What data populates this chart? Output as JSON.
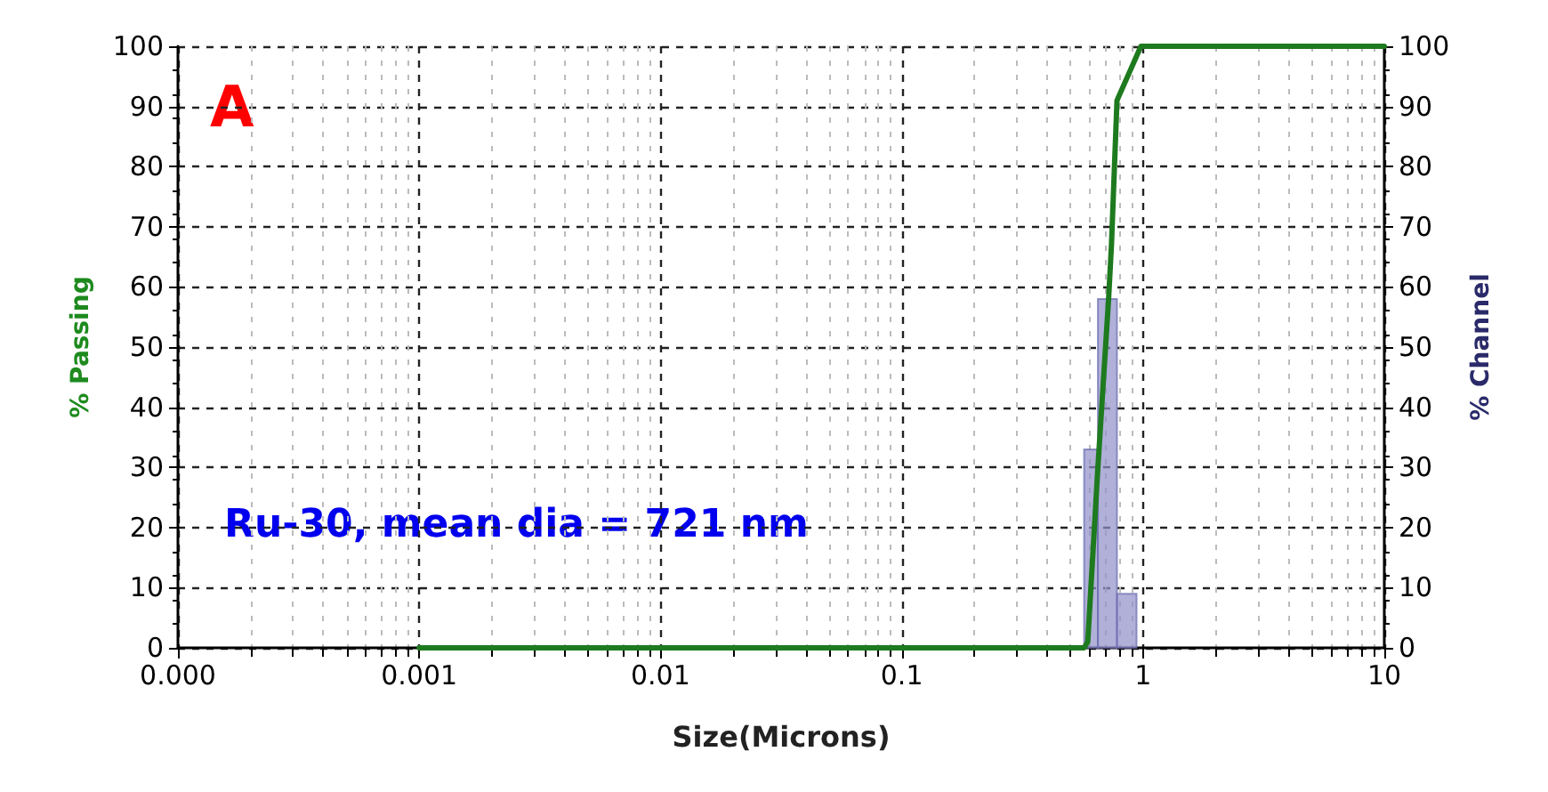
{
  "chart_data": {
    "type": "line",
    "xlabel": "Size(Microns)",
    "ylabel": "% Passing",
    "y2label": "% Channel",
    "log": "x",
    "xlim": [
      0.0001,
      10
    ],
    "xticks": [
      {
        "value": 0.0001,
        "label": "0.000"
      },
      0.001,
      0.01,
      0.1,
      1,
      10
    ],
    "ylim": [
      0,
      100
    ],
    "yticks": [
      0,
      10,
      20,
      30,
      40,
      50,
      60,
      70,
      80,
      90,
      100
    ],
    "y2lim": [
      0,
      100
    ],
    "y2ticks": [
      0,
      10,
      20,
      30,
      40,
      50,
      60,
      70,
      80,
      90,
      100
    ],
    "grid": true,
    "annotations": [
      "A",
      "Ru-30, mean dia = 721 nm"
    ],
    "series": [
      {
        "color": "#1e7a1e",
        "x": [
          0.001,
          0.57,
          0.59,
          0.65,
          0.72,
          0.74,
          0.78,
          0.98,
          10
        ],
        "values": [
          0,
          0,
          1,
          30,
          58,
          67,
          91,
          100,
          100
        ]
      },
      {
        "type": "histogram",
        "axis": "y2",
        "color": "#8f8fc8",
        "bins": [
          0.57,
          0.65,
          0.78,
          0.94
        ],
        "values": [
          33,
          58,
          9
        ]
      }
    ]
  }
}
